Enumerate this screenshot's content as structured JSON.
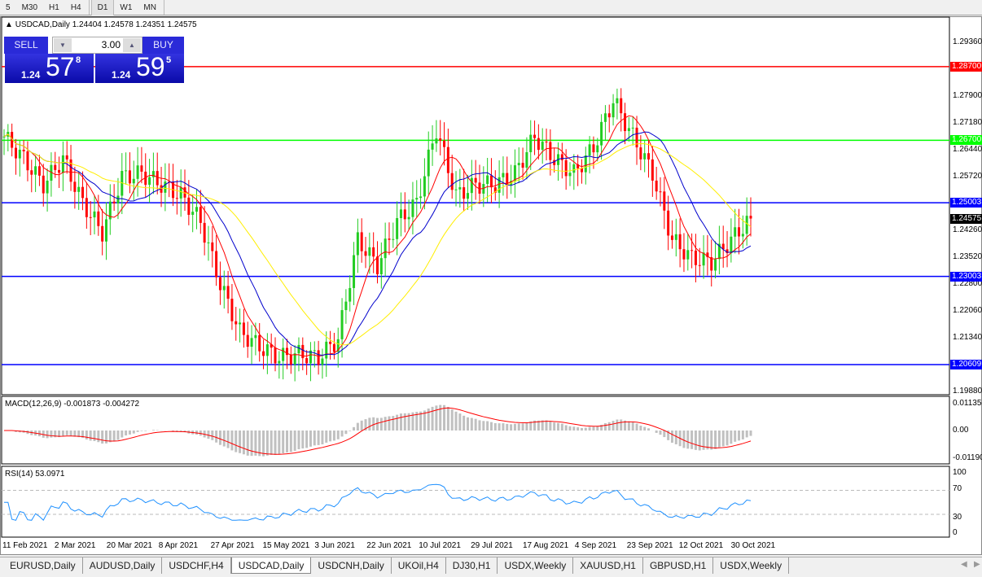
{
  "toolbar": {
    "timeframes": [
      "5",
      "M30",
      "H1",
      "H4",
      "D1",
      "W1",
      "MN"
    ],
    "active": "D1"
  },
  "chart": {
    "header": "USDCAD,Daily  1.24404 1.24578 1.24351 1.24575",
    "trade_panel": {
      "sell_label": "SELL",
      "buy_label": "BUY",
      "lot": "3.00",
      "sell_prefix": "1.24",
      "sell_big": "57",
      "sell_sup": "8",
      "buy_prefix": "1.24",
      "buy_big": "59",
      "buy_sup": "5"
    },
    "price_axis": [
      "1.29360",
      "1.27900",
      "1.27180",
      "1.26440",
      "1.25720",
      "1.24260",
      "1.23520",
      "1.22800",
      "1.22060",
      "1.21340",
      "1.19880"
    ],
    "levels": [
      {
        "price": "1.28700",
        "color": "#ff0000"
      },
      {
        "price": "1.26700",
        "color": "#00ff00"
      },
      {
        "price": "1.25003",
        "color": "#0000ff"
      },
      {
        "price": "1.23003",
        "color": "#0000ff"
      },
      {
        "price": "1.20609",
        "color": "#0000ff"
      }
    ],
    "current_price": "1.24575",
    "colors": {
      "bull": "#22cc22",
      "bear": "#ff0000",
      "ma_fast": "#ff0000",
      "ma_mid": "#0000cc",
      "ma_slow": "#ffee00"
    },
    "weekly_closes": [
      1.268,
      1.262,
      1.255,
      1.262,
      1.25,
      1.242,
      1.257,
      1.258,
      1.255,
      1.252,
      1.245,
      1.228,
      1.215,
      1.211,
      1.208,
      1.209,
      1.208,
      1.213,
      1.24,
      1.233,
      1.245,
      1.25,
      1.27,
      1.252,
      1.255,
      1.255,
      1.258,
      1.268,
      1.262,
      1.258,
      1.265,
      1.278,
      1.268,
      1.258,
      1.24,
      1.235,
      1.234,
      1.24,
      1.24575
    ],
    "macd": {
      "label": "MACD(12,26,9) -0.001873 -0.004272",
      "axis": [
        "0.01135",
        "0.00",
        "-0.01190"
      ]
    },
    "rsi": {
      "label": "RSI(14) 53.0971",
      "axis": [
        "100",
        "70",
        "30",
        "0"
      ]
    },
    "dates": [
      "11 Feb 2021",
      "2 Mar 2021",
      "20 Mar 2021",
      "8 Apr 2021",
      "27 Apr 2021",
      "15 May 2021",
      "3 Jun 2021",
      "22 Jun 2021",
      "10 Jul 2021",
      "29 Jul 2021",
      "17 Aug 2021",
      "4 Sep 2021",
      "23 Sep 2021",
      "12 Oct 2021",
      "30 Oct 2021"
    ]
  },
  "tabs": [
    {
      "label": "EURUSD,Daily"
    },
    {
      "label": "AUDUSD,Daily"
    },
    {
      "label": "USDCHF,H4"
    },
    {
      "label": "USDCAD,Daily",
      "active": true
    },
    {
      "label": "USDCNH,Daily"
    },
    {
      "label": "UKOil,H4"
    },
    {
      "label": "DJ30,H1"
    },
    {
      "label": "USDX,Weekly"
    },
    {
      "label": "XAUUSD,H1"
    },
    {
      "label": "GBPUSD,H1"
    },
    {
      "label": "USDX,Weekly"
    }
  ]
}
